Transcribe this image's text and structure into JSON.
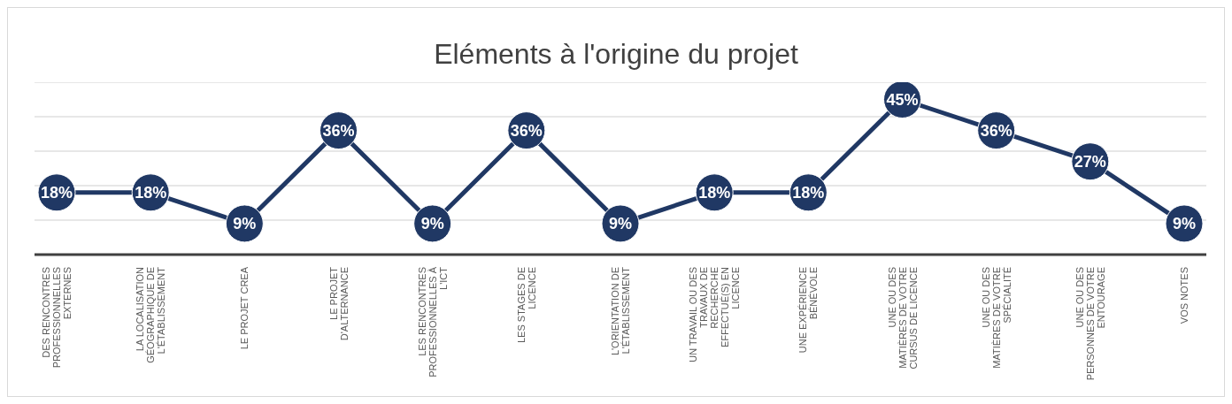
{
  "chart_data": {
    "type": "line",
    "title": "Eléments à l'origine du projet",
    "categories": [
      "DES RENCONTRES PROFESSIONNELLES EXTERNES",
      "LA LOCALISATION GÉOGRAPHIQUE DE L'ÉTABLISSEMENT",
      "LE PROJET CREA",
      "LE PROJET D'ALTERNANCE",
      "LES RENCONTRES PROFESSIONNELLES À L'ICT",
      "LES STAGES DE LICENCE",
      "L'ORIENTATION DE L'ÉTABLISSEMENT",
      "UN TRAVAIL OU DES TRAVAUX DE RECHERCHE EFFECTUÉ(S) EN LICENCE",
      "UNE EXPÉRIENCE BÉNÉVOLE",
      "UNE OU DES MATIÈRES DE VOTRE CURSUS DE LICENCE",
      "UNE OU DES MATIÈRES DE VOTRE SPÉCIALITÉ",
      "UNE OU DES PERSONNES DE VOTRE ENTOURAGE",
      "VOS NOTES"
    ],
    "series": [
      {
        "color": "#203864",
        "values": [
          18,
          18,
          9,
          36,
          9,
          36,
          9,
          18,
          18,
          45,
          36,
          27,
          9
        ],
        "value_labels": [
          "18%",
          "18%",
          "9%",
          "36%",
          "9%",
          "36%",
          "9%",
          "18%",
          "18%",
          "45%",
          "36%",
          "27%",
          "9%"
        ]
      }
    ],
    "ylim": [
      0,
      50
    ],
    "yticks": [
      {
        "value": 0,
        "label": null
      },
      {
        "value": 10,
        "label": null
      },
      {
        "value": 20,
        "label": null
      },
      {
        "value": 30,
        "label": null
      },
      {
        "value": 40,
        "label": null
      },
      {
        "value": 50,
        "label": null
      }
    ],
    "tick_labels": "x",
    "grid": "y",
    "legend": false,
    "marker": "circle",
    "line_style": "solid"
  }
}
